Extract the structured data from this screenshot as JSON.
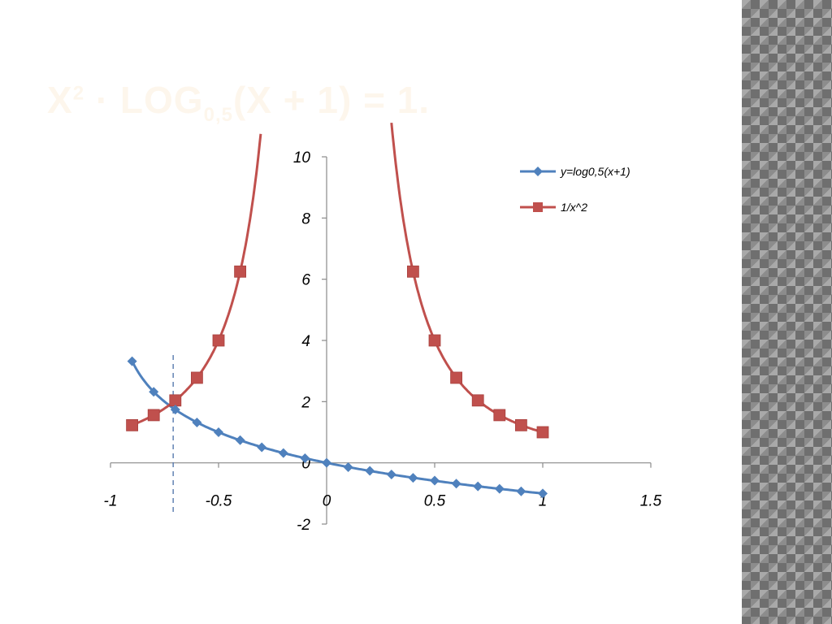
{
  "slide": {
    "title_base": "X",
    "title_sup": "2",
    "title_mid": " · LOG",
    "title_sub": "0,5",
    "title_end": "(X + 1) = 1."
  },
  "chart_data": {
    "type": "scatter",
    "title": "",
    "xlabel": "",
    "ylabel": "",
    "xlim": [
      -1,
      1.5
    ],
    "ylim": [
      -2,
      10
    ],
    "x_ticks": [
      "-1",
      "-0.5",
      "0",
      "0.5",
      "1",
      "1.5"
    ],
    "y_ticks": [
      "-2",
      "0",
      "2",
      "4",
      "6",
      "8",
      "10"
    ],
    "grid": false,
    "legend_position": "top-right",
    "series": [
      {
        "name": "y=log0,5(x+1)",
        "color": "#4f81bd",
        "marker": "diamond",
        "x": [
          -0.9,
          -0.8,
          -0.7,
          -0.6,
          -0.5,
          -0.4,
          -0.3,
          -0.2,
          -0.1,
          0,
          0.1,
          0.2,
          0.3,
          0.4,
          0.5,
          0.6,
          0.7,
          0.8,
          0.9,
          1.0
        ],
        "y": [
          3.32,
          2.32,
          1.74,
          1.32,
          1.0,
          0.74,
          0.51,
          0.32,
          0.15,
          0,
          -0.14,
          -0.26,
          -0.38,
          -0.49,
          -0.58,
          -0.68,
          -0.77,
          -0.85,
          -0.93,
          -1.0
        ]
      },
      {
        "name": "1/x^2",
        "color": "#c0504d",
        "marker": "square",
        "x": [
          -0.9,
          -0.8,
          -0.7,
          -0.6,
          -0.5,
          -0.4,
          0.4,
          0.5,
          0.6,
          0.7,
          0.8,
          0.9,
          1.0
        ],
        "y": [
          1.23,
          1.56,
          2.04,
          2.78,
          4.0,
          6.25,
          6.25,
          4.0,
          2.78,
          2.04,
          1.56,
          1.23,
          1.0
        ]
      }
    ],
    "reference_line": {
      "x": -0.71,
      "style": "dashed"
    }
  }
}
